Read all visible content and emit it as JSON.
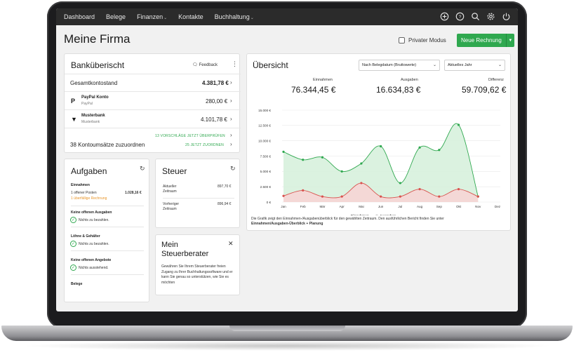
{
  "nav": {
    "items": [
      {
        "label": "Dashboard",
        "dropdown": false
      },
      {
        "label": "Belege",
        "dropdown": false
      },
      {
        "label": "Finanzen",
        "dropdown": true
      },
      {
        "label": "Kontakte",
        "dropdown": false
      },
      {
        "label": "Buchhaltung",
        "dropdown": true
      }
    ],
    "icons": [
      "plus-icon",
      "help-icon",
      "search-icon",
      "gear-icon",
      "power-icon"
    ]
  },
  "header": {
    "title": "Meine Firma",
    "private_mode_label": "Privater Modus",
    "new_invoice_label": "Neue Rechnung"
  },
  "bank": {
    "title": "Banküberischt",
    "feedback_label": "Feedback",
    "total_label": "Gesamtkontostand",
    "total_value": "4.381,78 €",
    "accounts": [
      {
        "name": "PayPal Konto",
        "sub": "PayPal",
        "amount": "280,00 €",
        "logo": "paypal-logo"
      },
      {
        "name": "Musterbank",
        "sub": "Musterbank",
        "amount": "4.101,78 €",
        "logo": "bank-logo"
      }
    ],
    "assign_label": "38 Kontoumsätze zuzuordnen",
    "link_review": "13 VORSCHLÄGE JETZT ÜBERPRÜFEN",
    "link_assign": "25 JETZT ZUORDNEN"
  },
  "tasks": {
    "title": "Aufgaben",
    "income_header": "Einnahmen",
    "open_items_label": "1 offener Posten",
    "open_items_value": "1.028,16 €",
    "overdue_label": "1 überfällige Rechnung",
    "no_expenses_header": "Keine offenen Ausgaben",
    "no_expenses_ok": "Nichts zu bezahlen.",
    "wages_header": "Löhne & Gehälter",
    "wages_ok": "Nichts zu bezahlen.",
    "no_offers_header": "Keine offenen Angebote",
    "no_offers_ok": "Nichts ausstehend.",
    "receipts_header": "Belege"
  },
  "tax": {
    "title": "Steuer",
    "rows": [
      {
        "label": "Aktueller Zeitraum",
        "value": "897,70 €"
      },
      {
        "label": "Vorheriger Zeitraum",
        "value": "896,94 €"
      }
    ]
  },
  "advisor": {
    "title": "Mein Steuerberater",
    "text": "Gewähren Sie Ihrem Steuerberater freien Zugang zu Ihrer Buchhaltungssoftware und er kann Sie genau so unterstützen, wie Sie es möchten"
  },
  "overview": {
    "title": "Übersicht",
    "select_date": "Nach Belegdatum (Bruttowerte)",
    "select_period": "Aktuelles Jahr",
    "kpis": [
      {
        "label": "Einnahmen",
        "value": "76.344,45 €"
      },
      {
        "label": "Ausgaben",
        "value": "16.634,83 €"
      },
      {
        "label": "Differenz",
        "value": "59.709,62 €"
      }
    ],
    "note_text": "Die Grafik zeigt den Einnahmen-/Ausgabenüberblick für den gewählten Zeitraum. Den ausführlichen Bericht finden Sie unter",
    "note_link": "Einnahmen/Ausgaben-Überblick + Planung"
  },
  "chart_data": {
    "type": "area",
    "categories": [
      "Jan",
      "Feb",
      "Mär",
      "Apr",
      "Mai",
      "Jun",
      "Jul",
      "Aug",
      "Sep",
      "Okt",
      "Nov",
      "Dez"
    ],
    "y_ticks": [
      "0 €",
      "2.500 €",
      "5.000 €",
      "7.500 €",
      "10.000 €",
      "12.500 €",
      "15.000 €"
    ],
    "ylim": [
      0,
      15000
    ],
    "series": [
      {
        "name": "Einnahmen",
        "color": "#2fa84f",
        "fill": "#d5f0da",
        "values": [
          8200,
          6900,
          7300,
          5000,
          6300,
          9100,
          3100,
          8900,
          8500,
          12600,
          900,
          null
        ]
      },
      {
        "name": "Ausgaben",
        "color": "#d9534f",
        "fill": "#f8d3d3",
        "values": [
          1000,
          1900,
          900,
          900,
          3100,
          900,
          900,
          2100,
          900,
          2100,
          900,
          null
        ]
      }
    ]
  }
}
